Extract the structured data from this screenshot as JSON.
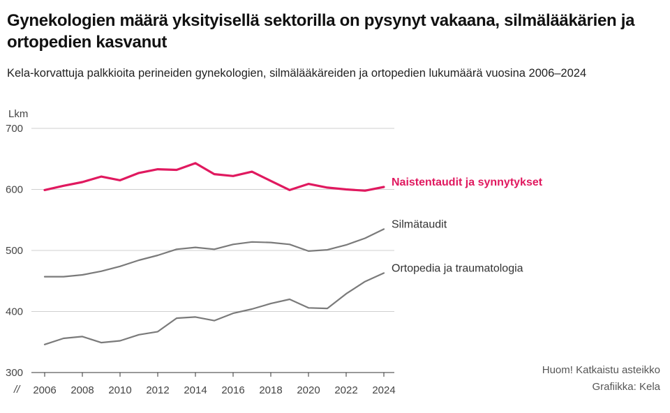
{
  "chart_data": {
    "type": "line",
    "title": "Gynekologien määrä yksityisellä sektorilla on pysynyt vakaana, silmälääkärien ja ortopedien kasvanut",
    "subtitle": "Kela-korvattuja palkkioita perineiden gynekologien, silmälääkäreiden ja ortopedien lukumäärä vuosina 2006–2024",
    "ylabel": "Lkm",
    "ylim": [
      300,
      700
    ],
    "yticks": [
      300,
      400,
      500,
      600,
      700
    ],
    "ytick_labels": [
      "300",
      "400",
      "500",
      "600",
      "700"
    ],
    "xlim": [
      2006,
      2024
    ],
    "xticks": [
      2006,
      2008,
      2010,
      2012,
      2014,
      2016,
      2018,
      2020,
      2022,
      2024
    ],
    "xtick_labels": [
      "2006",
      "2008",
      "2010",
      "2012",
      "2014",
      "2016",
      "2018",
      "2020",
      "2022",
      "2024"
    ],
    "axis_break_symbol": "//",
    "grid": true,
    "x": [
      2006,
      2007,
      2008,
      2009,
      2010,
      2011,
      2012,
      2013,
      2014,
      2015,
      2016,
      2017,
      2018,
      2019,
      2020,
      2021,
      2022,
      2023,
      2024
    ],
    "series": [
      {
        "name": "Naistentaudit ja synnytykset",
        "color": "#e0195f",
        "highlight": true,
        "values": [
          599,
          606,
          612,
          621,
          615,
          627,
          633,
          632,
          643,
          625,
          622,
          629,
          614,
          599,
          609,
          603,
          600,
          598,
          604
        ]
      },
      {
        "name": "Silmätaudit",
        "color": "#7a7a7a",
        "highlight": false,
        "values": [
          457,
          457,
          460,
          466,
          474,
          484,
          492,
          502,
          505,
          502,
          510,
          514,
          513,
          510,
          499,
          501,
          509,
          520,
          535
        ]
      },
      {
        "name": "Ortopedia ja traumatologia",
        "color": "#7a7a7a",
        "highlight": false,
        "values": [
          346,
          356,
          359,
          349,
          352,
          362,
          367,
          389,
          391,
          385,
          397,
          404,
          413,
          420,
          406,
          405,
          429,
          449,
          463
        ]
      }
    ]
  },
  "notes": {
    "scale_note": "Huom! Katkaistu asteikko",
    "credit": "Grafiikka: Kela"
  }
}
